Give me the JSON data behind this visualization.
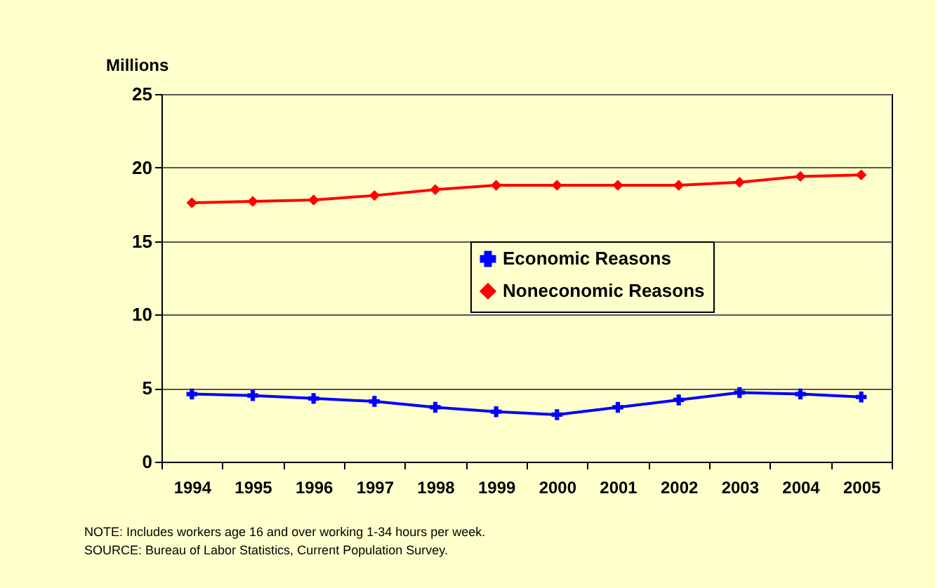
{
  "chart_data": {
    "type": "line",
    "ylabel": "Millions",
    "categories": [
      "1994",
      "1995",
      "1996",
      "1997",
      "1998",
      "1999",
      "2000",
      "2001",
      "2002",
      "2003",
      "2004",
      "2005"
    ],
    "series": [
      {
        "name": "Economic Reasons",
        "color": "#0000ff",
        "marker": "cross",
        "values": [
          4.6,
          4.5,
          4.3,
          4.1,
          3.7,
          3.4,
          3.2,
          3.7,
          4.2,
          4.7,
          4.6,
          4.4
        ]
      },
      {
        "name": "Noneconomic Reasons",
        "color": "#ff0000",
        "marker": "diamond",
        "values": [
          17.6,
          17.7,
          17.8,
          18.1,
          18.5,
          18.8,
          18.8,
          18.8,
          18.8,
          19.0,
          19.4,
          19.5
        ]
      }
    ],
    "ylim": [
      0,
      25
    ],
    "yticks": [
      0,
      5,
      10,
      15,
      20,
      25
    ],
    "grid": "y",
    "legend": "center",
    "annotations": [
      "NOTE:      Includes workers age 16 and over working 1-34 hours per week.",
      "SOURCE:   Bureau of Labor Statistics, Current Population Survey."
    ]
  }
}
